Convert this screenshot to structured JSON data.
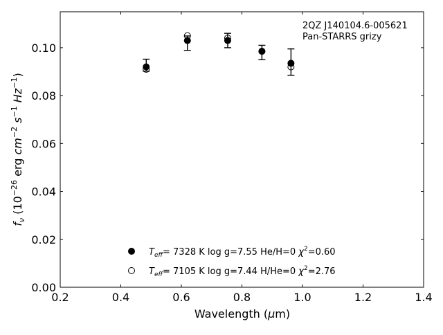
{
  "chart_data": {
    "type": "scatter",
    "annotation": {
      "line1": "2QZ J140104.6-005621",
      "line2": "Pan-STARRS grizy"
    },
    "xlabel": {
      "prefix": "Wavelength (",
      "mu": "μ",
      "suffix": "m)"
    },
    "ylabel": {
      "f": "f",
      "nu": "ν",
      "open": " (10",
      "exp26": "−26",
      "erg": " erg ",
      "cm": "cm",
      "exp2": "−2",
      "s": " s",
      "exp1": "−1",
      "hz": " Hz",
      "exp1b": "−1",
      "close": ")"
    },
    "xlim": [
      0.2,
      1.4
    ],
    "ylim": [
      0.0,
      0.115
    ],
    "xticks": [
      0.2,
      0.4,
      0.6,
      0.8,
      1.0,
      1.2,
      1.4
    ],
    "xtick_labels": [
      "0.2",
      "0.4",
      "0.6",
      "0.8",
      "1.0",
      "1.2",
      "1.4"
    ],
    "yticks": [
      0.0,
      0.02,
      0.04,
      0.06,
      0.08,
      0.1
    ],
    "ytick_labels": [
      "0.00",
      "0.02",
      "0.04",
      "0.06",
      "0.08",
      "0.10"
    ],
    "observed": {
      "x": [
        0.484,
        0.62,
        0.753,
        0.866,
        0.962
      ],
      "y": [
        0.0927,
        0.1019,
        0.103,
        0.098,
        0.094
      ],
      "yerr": [
        0.0025,
        0.003,
        0.003,
        0.003,
        0.0055
      ]
    },
    "series": [
      {
        "marker": "filled",
        "x": [
          0.484,
          0.62,
          0.753,
          0.866,
          0.962
        ],
        "y": [
          0.092,
          0.103,
          0.103,
          0.0985,
          0.0935
        ],
        "label": {
          "teff_T": "T",
          "teff_sub": "eff",
          "text1": "=  7328 K  log g=7.55  He/H=0  ",
          "chi": "χ",
          "chi_exp": "2",
          "text2": "=0.60"
        }
      },
      {
        "marker": "open",
        "x": [
          0.484,
          0.62,
          0.753,
          0.866,
          0.962
        ],
        "y": [
          0.091,
          0.105,
          0.104,
          0.0985,
          0.092
        ],
        "label": {
          "teff_T": "T",
          "teff_sub": "eff",
          "text1": "=  7105 K  log g=7.44  H/He=0  ",
          "chi": "χ",
          "chi_exp": "2",
          "text2": "=2.76"
        }
      }
    ],
    "legend_position": "bottom-center",
    "grid": false
  }
}
